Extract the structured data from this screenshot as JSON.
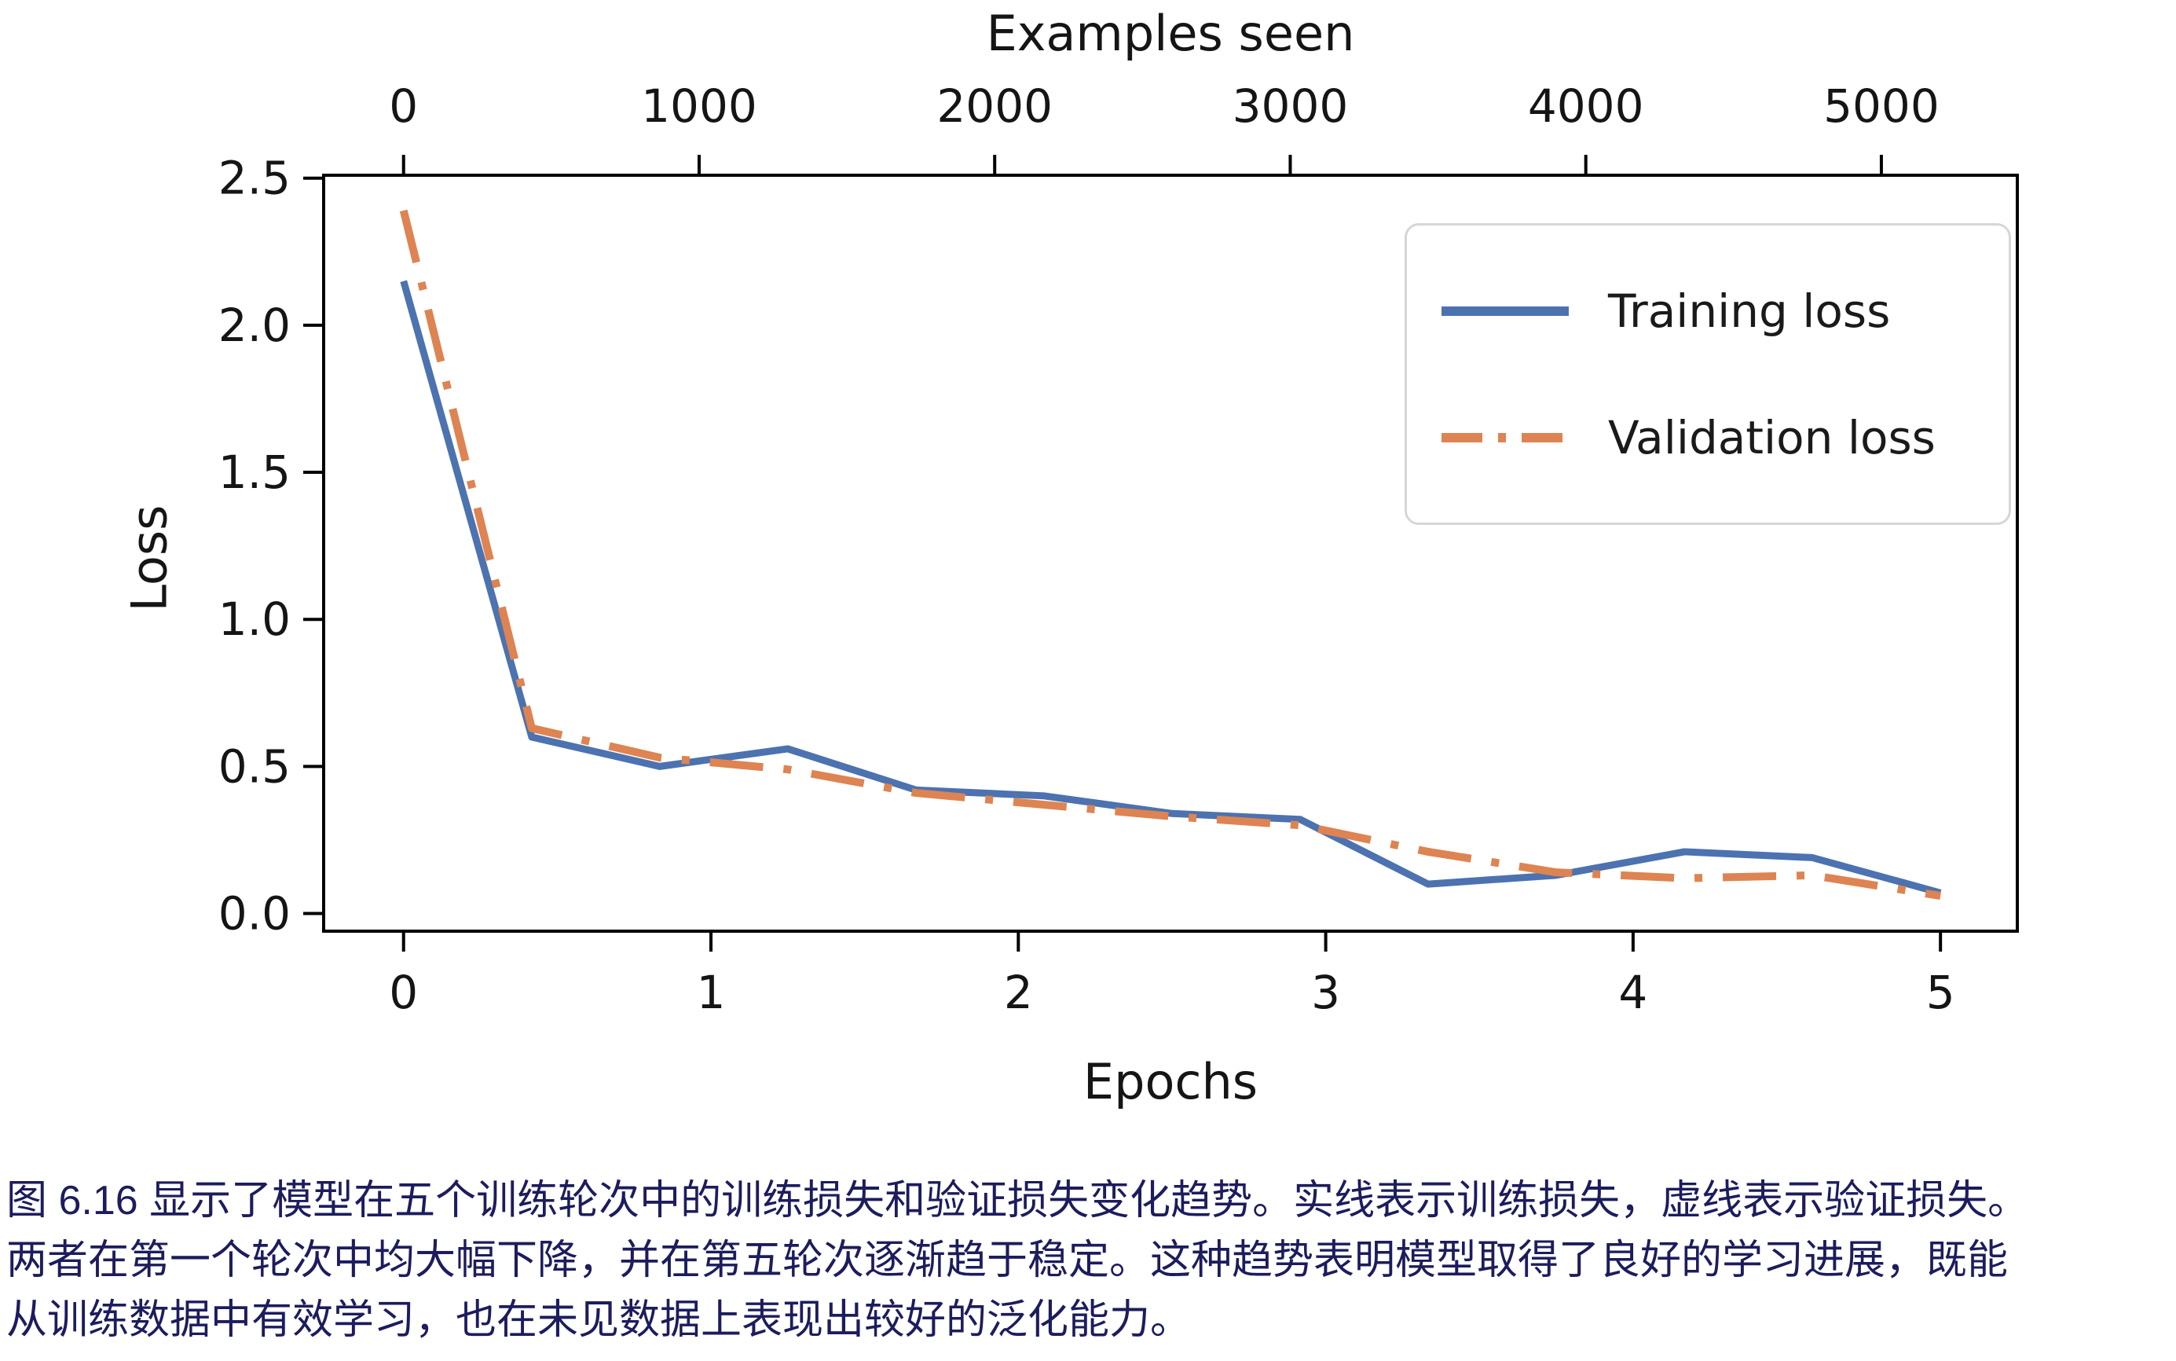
{
  "figure": {
    "top_axis_title": "Examples seen",
    "xlabel": "Epochs",
    "ylabel": "Loss"
  },
  "chart_data": {
    "type": "line",
    "title": "",
    "xlabel": "Epochs",
    "ylabel": "Loss",
    "x2label": "Examples seen",
    "x": [
      0,
      0.417,
      0.833,
      1.25,
      1.667,
      2.083,
      2.5,
      2.917,
      3.333,
      3.75,
      4.167,
      4.583,
      5.0
    ],
    "series": [
      {
        "name": "Training loss",
        "color": "#4C72B0",
        "line_style": "solid",
        "line_width": 9,
        "values": [
          2.15,
          0.6,
          0.5,
          0.56,
          0.42,
          0.4,
          0.34,
          0.32,
          0.1,
          0.13,
          0.21,
          0.19,
          0.07
        ]
      },
      {
        "name": "Validation loss",
        "color": "#DD8452",
        "line_style": "dashdot",
        "line_width": 10,
        "values": [
          2.39,
          0.63,
          0.53,
          0.49,
          0.41,
          0.37,
          0.33,
          0.3,
          0.21,
          0.14,
          0.12,
          0.13,
          0.06
        ]
      }
    ],
    "xlim": [
      -0.26,
      5.25
    ],
    "ylim": [
      -0.06,
      2.51
    ],
    "xticks": [
      0,
      1,
      2,
      3,
      4,
      5
    ],
    "yticks": [
      0.0,
      0.5,
      1.0,
      1.5,
      2.0,
      2.5
    ],
    "x2ticks": [
      0,
      1000,
      2000,
      3000,
      4000,
      5000
    ],
    "examples_per_epoch": 1040,
    "grid": false,
    "legend_position": "upper right",
    "axis_color": "#000000",
    "tick_label_color": "#151515"
  },
  "caption": {
    "lines": [
      "图 6.16 显示了模型在五个训练轮次中的训练损失和验证损失变化趋势。实线表示训练损失，虚线表示验证损失。",
      "两者在第一个轮次中均大幅下降，并在第五轮次逐渐趋于稳定。这种趋势表明模型取得了良好的学习进展，既能",
      "从训练数据中有效学习，也在未见数据上表现出较好的泛化能力。"
    ]
  }
}
